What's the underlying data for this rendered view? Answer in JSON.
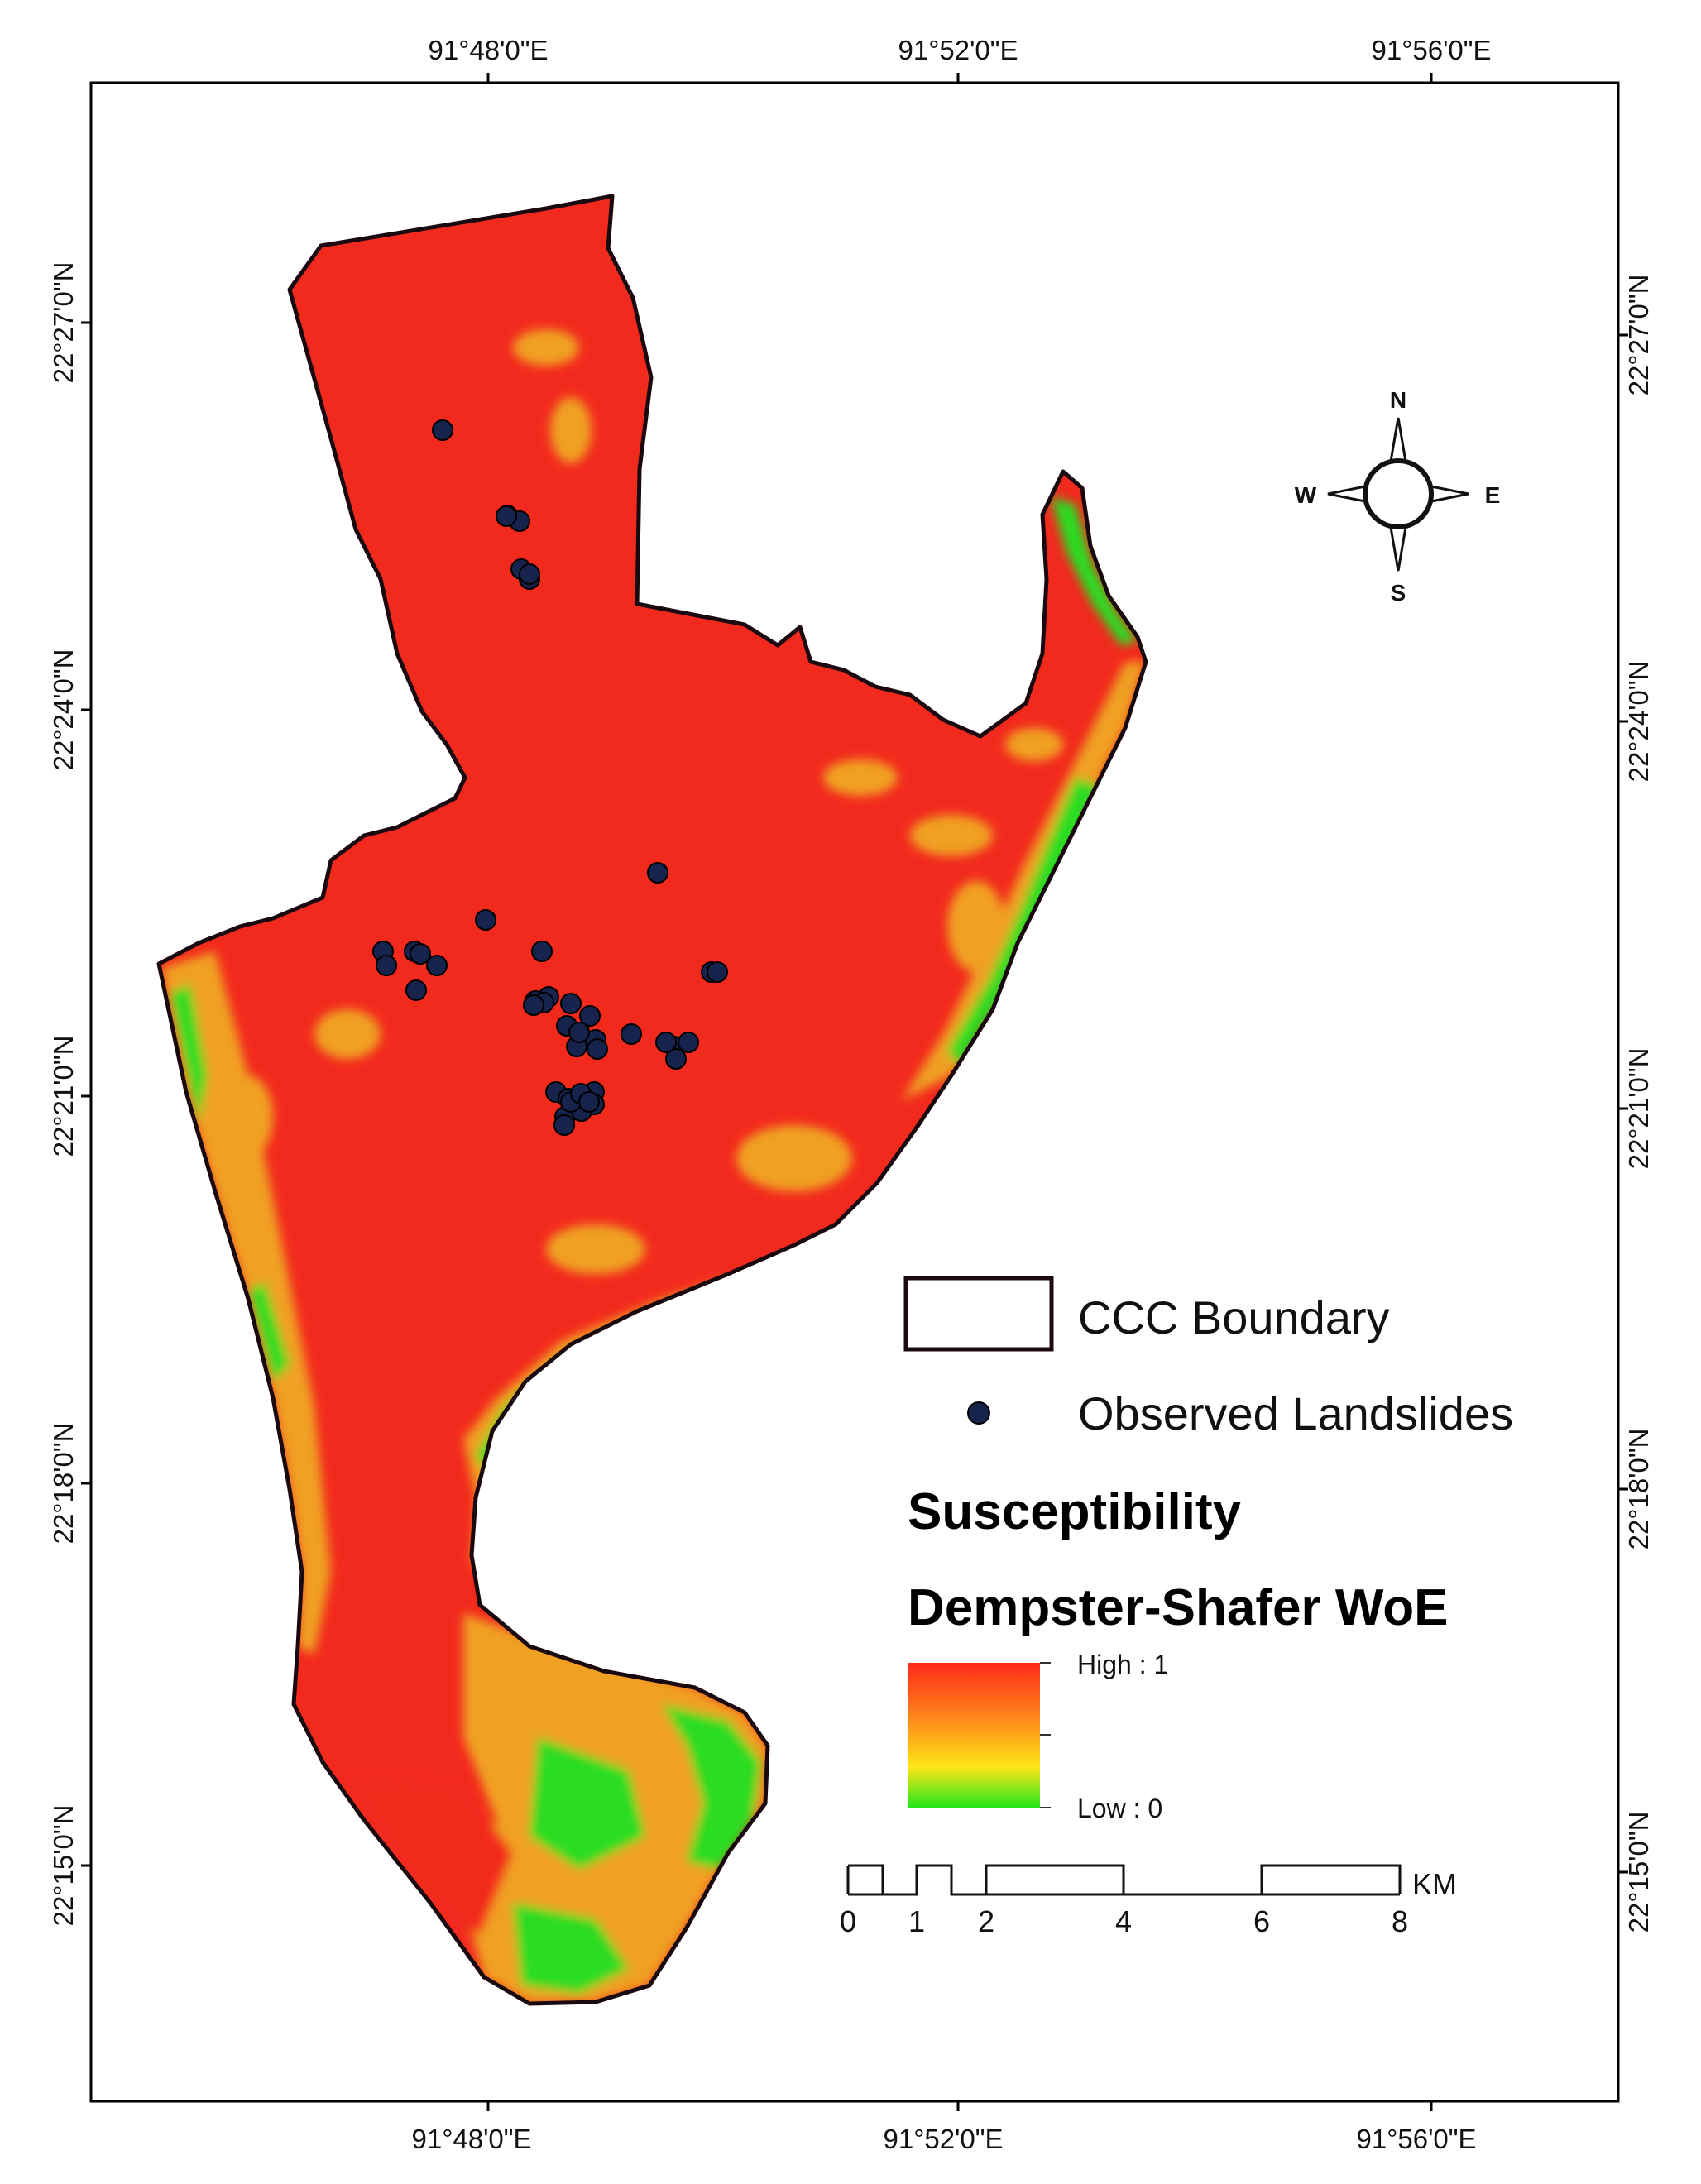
{
  "graticule": {
    "top_longitudes": [
      "91°48'0\"E",
      "91°52'0\"E",
      "91°56'0\"E"
    ],
    "bottom_longitudes": [
      "91°48'0\"E",
      "91°52'0\"E",
      "91°56'0\"E"
    ],
    "left_latitudes": [
      "22°27'0\"N",
      "22°24'0\"N",
      "22°21'0\"N",
      "22°18'0\"N",
      "22°15'0\"N"
    ],
    "right_latitudes": [
      "22°27'0\"N",
      "22°24'0\"N",
      "22°21'0\"N",
      "22°18'0\"N",
      "22°15'0\"N"
    ]
  },
  "north_arrow": {
    "n": "N",
    "s": "S",
    "e": "E",
    "w": "W"
  },
  "legend": {
    "boundary_label": "CCC Boundary",
    "landslides_label": "Observed Landslides",
    "title_line1": "Susceptibility",
    "title_line2": "Dempster-Shafer WoE",
    "high_label": "High : 1",
    "low_label": "Low : 0",
    "colors": {
      "high": "#ff2a1a",
      "mid_high": "#ff8c1a",
      "mid": "#ffe61a",
      "low": "#22e61a"
    }
  },
  "scale_bar": {
    "ticks": [
      "0",
      "1",
      "2",
      "4",
      "6",
      "8"
    ],
    "unit": "KM"
  },
  "map_colors": {
    "susceptibility_high": "#f22a1e",
    "susceptibility_medium": "#f0a020",
    "susceptibility_low": "#2bdc22",
    "boundary": "#1a0a10",
    "landslide_point": "#16234d"
  },
  "landslide_count": 47
}
